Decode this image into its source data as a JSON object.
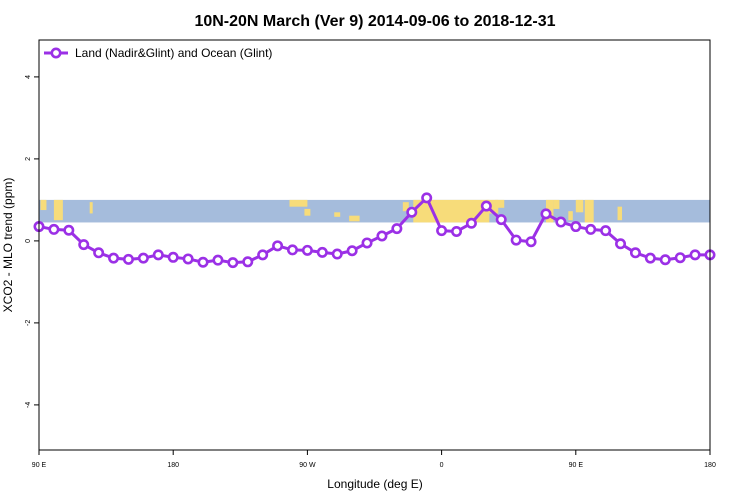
{
  "chart_data": {
    "type": "line",
    "title": "10N-20N March (Ver 9)   2014-09-06 to 2018-12-31",
    "xlabel": "Longitude (deg E)",
    "ylabel": "XCO2 - MLO trend (ppm)",
    "xlim": [
      90,
      540
    ],
    "ylim": [
      -5.1,
      4.9
    ],
    "x_ticks": [
      {
        "value": 90,
        "label": "90 E"
      },
      {
        "value": 180,
        "label": "180"
      },
      {
        "value": 270,
        "label": "90 W"
      },
      {
        "value": 360,
        "label": "0"
      },
      {
        "value": 450,
        "label": "90 E"
      },
      {
        "value": 540,
        "label": "180"
      }
    ],
    "y_ticks": [
      {
        "value": -4,
        "label": "-4"
      },
      {
        "value": -2,
        "label": "-2"
      },
      {
        "value": 0,
        "label": "0"
      },
      {
        "value": 2,
        "label": "2"
      },
      {
        "value": 4,
        "label": "4"
      }
    ],
    "grid": false,
    "legend_position": "top-left",
    "land_ocean_band": {
      "y_range": [
        0.45,
        1.0
      ],
      "ocean_color": "#a5bcdc",
      "land_color": "#f7dc7a"
    },
    "series": [
      {
        "name": "Land (Nadir&Glint) and Ocean (Glint)",
        "color": "#9b30e6",
        "x": [
          90,
          100,
          110,
          120,
          130,
          140,
          150,
          160,
          170,
          180,
          190,
          200,
          210,
          220,
          230,
          240,
          250,
          260,
          270,
          280,
          290,
          300,
          310,
          320,
          330,
          340,
          350,
          360,
          370,
          380,
          390,
          400,
          410,
          420,
          430,
          440,
          450,
          460,
          470,
          480,
          490,
          500,
          510,
          520,
          530,
          540
        ],
        "y": [
          0.35,
          0.28,
          0.26,
          -0.09,
          -0.29,
          -0.42,
          -0.45,
          -0.42,
          -0.34,
          -0.4,
          -0.44,
          -0.52,
          -0.47,
          -0.53,
          -0.51,
          -0.34,
          -0.12,
          -0.22,
          -0.23,
          -0.28,
          -0.32,
          -0.24,
          -0.05,
          0.12,
          0.3,
          0.7,
          1.05,
          0.25,
          0.23,
          0.43,
          0.85,
          0.52,
          0.02,
          -0.02,
          0.66,
          0.46,
          0.35,
          0.28,
          0.25,
          -0.07,
          -0.29,
          -0.42,
          -0.46,
          -0.41,
          -0.34,
          -0.34
        ]
      }
    ]
  }
}
